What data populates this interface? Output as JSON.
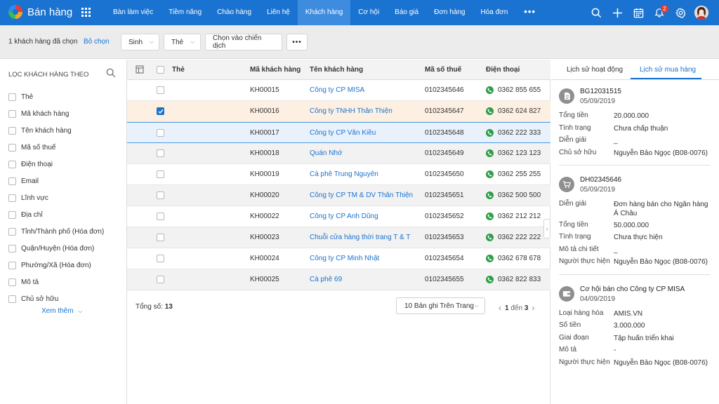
{
  "app": {
    "title": "Bán hàng"
  },
  "nav": {
    "items": [
      "Bàn làm việc",
      "Tiềm năng",
      "Chào hàng",
      "Liên hệ",
      "Khách hàng",
      "Cơ hội",
      "Báo giá",
      "Đơn hàng",
      "Hóa đơn"
    ],
    "active_index": 4,
    "more_label": "•••",
    "notification_count": "2"
  },
  "toolbar": {
    "selected_count": "1",
    "selected_label": "khách hàng đã chọn",
    "deselect_label": "Bỏ chọn",
    "buttons": [
      "Sinh",
      "Thẻ",
      "Chọn vào chiến dịch"
    ],
    "more_label": "•••"
  },
  "filter": {
    "title": "LỌC KHÁCH HÀNG THEO",
    "items": [
      "Thẻ",
      "Mã khách hàng",
      "Tên khách hàng",
      "Mã số thuế",
      "Điện thoại",
      "Email",
      "Lĩnh vực",
      "Địa chỉ",
      "Tỉnh/Thành phố (Hóa đơn)",
      "Quận/Huyện (Hóa đơn)",
      "Phường/Xã (Hóa đơn)",
      "Mô tả",
      "Chủ sở hữu"
    ],
    "more_label": "Xem thêm"
  },
  "table": {
    "columns": [
      "Thẻ",
      "Mã khách hàng",
      "Tên khách hàng",
      "Mã số thuế",
      "Điện thoại"
    ],
    "rows": [
      {
        "code": "KH00015",
        "name": "Công ty CP MISA",
        "tax": "0102345646",
        "phone": "0362 855 655"
      },
      {
        "code": "KH00016",
        "name": "Công ty TNHH Thân Thiện",
        "tax": "0102345647",
        "phone": "0362 624 827"
      },
      {
        "code": "KH00017",
        "name": "Công ty CP Văn Kiều",
        "tax": "0102345648",
        "phone": "0362 222 333"
      },
      {
        "code": "KH00018",
        "name": "Quán Nhớ",
        "tax": "0102345649",
        "phone": "0362 123 123"
      },
      {
        "code": "KH00019",
        "name": "Cà phê Trung Nguyên",
        "tax": "0102345650",
        "phone": "0362 255 255"
      },
      {
        "code": "KH00020",
        "name": "Công ty CP TM & DV Thân Thiện",
        "tax": "0102345651",
        "phone": "0362 500 500"
      },
      {
        "code": "KH00022",
        "name": "Công ty CP Anh Dũng",
        "tax": "0102345652",
        "phone": "0362 212 212"
      },
      {
        "code": "KH00023",
        "name": "Chuỗi cửa hàng thời trang T & T",
        "tax": "0102345653",
        "phone": "0362 222 222"
      },
      {
        "code": "KH00024",
        "name": "Công ty CP Minh Nhật",
        "tax": "0102345654",
        "phone": "0362 678 678"
      },
      {
        "code": "KH00025",
        "name": "Cà phê 69",
        "tax": "0102345655",
        "phone": "0362 822 833"
      }
    ],
    "checked_index": 1,
    "focused_index": 2
  },
  "footer": {
    "total_label": "Tổng số:",
    "total_value": "13",
    "page_size": "10 Bản ghi Trên Trang",
    "page_from": "1",
    "page_sep": "đến",
    "page_to": "3"
  },
  "right_panel": {
    "tabs": [
      "Lịch sử hoạt động",
      "Lịch sử mua hàng"
    ],
    "active_tab": 1,
    "records": [
      {
        "icon": "document-icon",
        "code": "BG12031515",
        "date": "05/09/2019",
        "fields": [
          {
            "k": "Tổng tiền",
            "v": "20.000.000"
          },
          {
            "k": "Tình trạng",
            "v": "Chưa chấp thuận"
          },
          {
            "k": "Diễn giải",
            "v": "_"
          },
          {
            "k": "Chủ sở hữu",
            "v": "Nguyễn Bảo Ngọc (B08-0076)"
          }
        ]
      },
      {
        "icon": "cart-icon",
        "code": "DH02345646",
        "date": "05/09/2019",
        "fields": [
          {
            "k": "Diễn giải",
            "v": "Đơn hàng bán cho Ngân hàng Á Châu"
          },
          {
            "k": "Tổng tiền",
            "v": "50.000.000"
          },
          {
            "k": "Tình trạng",
            "v": "Chưa thực hiện"
          },
          {
            "k": "Mô tả chi tiết",
            "v": "_"
          },
          {
            "k": "Người thực hiện",
            "v": "Nguyễn Bảo Ngọc (B08-0076)"
          }
        ]
      },
      {
        "icon": "wallet-icon",
        "code": "Cơ hội bán cho Công ty CP MISA",
        "date": "04/09/2019",
        "fields": [
          {
            "k": "Loại hàng hóa",
            "v": "AMIS.VN"
          },
          {
            "k": "Số tiền",
            "v": "3.000.000"
          },
          {
            "k": "Giai đoạn",
            "v": "Tập huấn triển khai"
          },
          {
            "k": "Mô tả",
            "v": "-"
          },
          {
            "k": "Người thực hiện",
            "v": "Nguyễn Bảo Ngọc (B08-0076)"
          }
        ]
      }
    ]
  },
  "colors": {
    "brand": "#1a73d0",
    "active_tab": "#3d8ce0",
    "phone": "#2e9e4a",
    "checked_row": "#fdf0e2"
  }
}
